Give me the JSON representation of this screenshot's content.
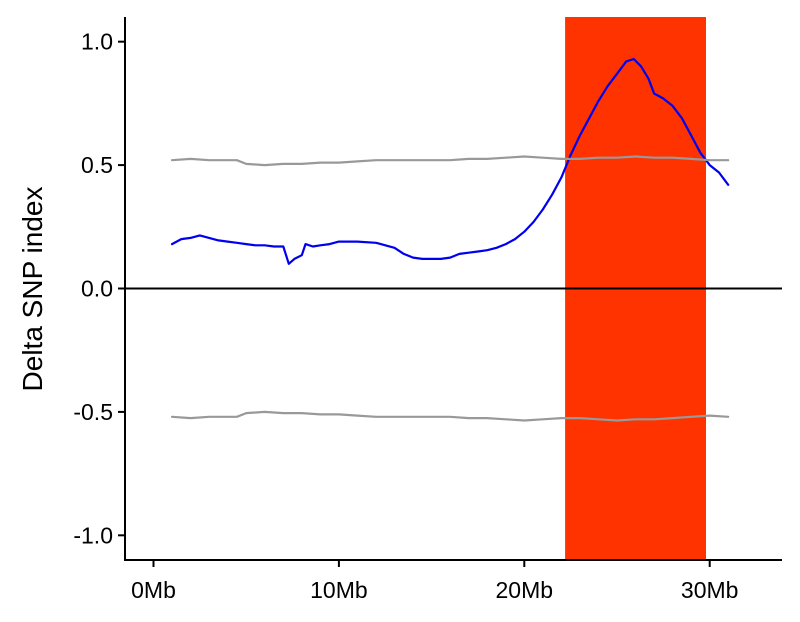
{
  "chart_data": {
    "type": "line",
    "title": "",
    "xlabel": "",
    "ylabel": "Delta SNP index",
    "xlim": [
      -1.5,
      34
    ],
    "ylim": [
      -1.1,
      1.1
    ],
    "x_ticks": [
      {
        "value": 0,
        "label": "0Mb"
      },
      {
        "value": 10,
        "label": "10Mb"
      },
      {
        "value": 20,
        "label": "20Mb"
      },
      {
        "value": 30,
        "label": "30Mb"
      }
    ],
    "y_ticks": [
      {
        "value": 1.0,
        "label": "1.0"
      },
      {
        "value": 0.5,
        "label": "0.5"
      },
      {
        "value": 0.0,
        "label": "0.0"
      },
      {
        "value": -0.5,
        "label": "-0.5"
      },
      {
        "value": -1.0,
        "label": "-1.0"
      }
    ],
    "grid": false,
    "zero_line": 0,
    "highlight_region": {
      "x_start": 22.2,
      "x_end": 29.8,
      "color": "#FF3300"
    },
    "series": [
      {
        "color": "#0000EE",
        "points": [
          [
            1.0,
            0.18
          ],
          [
            1.5,
            0.2
          ],
          [
            2.0,
            0.205
          ],
          [
            2.5,
            0.215
          ],
          [
            3.0,
            0.205
          ],
          [
            3.5,
            0.195
          ],
          [
            4.0,
            0.19
          ],
          [
            4.5,
            0.185
          ],
          [
            5.0,
            0.18
          ],
          [
            5.5,
            0.175
          ],
          [
            6.0,
            0.175
          ],
          [
            6.5,
            0.17
          ],
          [
            7.0,
            0.17
          ],
          [
            7.3,
            0.1
          ],
          [
            7.6,
            0.12
          ],
          [
            8.0,
            0.135
          ],
          [
            8.2,
            0.18
          ],
          [
            8.6,
            0.17
          ],
          [
            9.0,
            0.175
          ],
          [
            9.5,
            0.18
          ],
          [
            10.0,
            0.19
          ],
          [
            10.5,
            0.19
          ],
          [
            11.0,
            0.19
          ],
          [
            12.0,
            0.185
          ],
          [
            12.5,
            0.175
          ],
          [
            13.0,
            0.165
          ],
          [
            13.5,
            0.14
          ],
          [
            14.0,
            0.125
          ],
          [
            14.5,
            0.12
          ],
          [
            15.0,
            0.12
          ],
          [
            15.5,
            0.12
          ],
          [
            16.0,
            0.125
          ],
          [
            16.5,
            0.14
          ],
          [
            17.0,
            0.145
          ],
          [
            17.5,
            0.15
          ],
          [
            18.0,
            0.155
          ],
          [
            18.5,
            0.165
          ],
          [
            19.0,
            0.18
          ],
          [
            19.5,
            0.2
          ],
          [
            20.0,
            0.23
          ],
          [
            20.5,
            0.27
          ],
          [
            21.0,
            0.32
          ],
          [
            21.5,
            0.38
          ],
          [
            22.0,
            0.45
          ],
          [
            22.5,
            0.54
          ],
          [
            23.0,
            0.62
          ],
          [
            23.5,
            0.69
          ],
          [
            24.0,
            0.76
          ],
          [
            24.5,
            0.82
          ],
          [
            25.0,
            0.87
          ],
          [
            25.5,
            0.92
          ],
          [
            25.9,
            0.93
          ],
          [
            26.3,
            0.9
          ],
          [
            26.7,
            0.85
          ],
          [
            27.0,
            0.79
          ],
          [
            27.5,
            0.77
          ],
          [
            28.0,
            0.74
          ],
          [
            28.5,
            0.69
          ],
          [
            29.0,
            0.62
          ],
          [
            29.5,
            0.55
          ],
          [
            30.0,
            0.5
          ],
          [
            30.5,
            0.47
          ],
          [
            31.0,
            0.42
          ]
        ]
      },
      {
        "color": "#999999",
        "points": [
          [
            1.0,
            0.52
          ],
          [
            2.0,
            0.525
          ],
          [
            3.0,
            0.52
          ],
          [
            4.0,
            0.52
          ],
          [
            4.5,
            0.52
          ],
          [
            5.0,
            0.505
          ],
          [
            6.0,
            0.5
          ],
          [
            7.0,
            0.505
          ],
          [
            8.0,
            0.505
          ],
          [
            9.0,
            0.51
          ],
          [
            10.0,
            0.51
          ],
          [
            11.0,
            0.515
          ],
          [
            12.0,
            0.52
          ],
          [
            13.0,
            0.52
          ],
          [
            14.0,
            0.52
          ],
          [
            15.0,
            0.52
          ],
          [
            16.0,
            0.52
          ],
          [
            17.0,
            0.525
          ],
          [
            18.0,
            0.525
          ],
          [
            19.0,
            0.53
          ],
          [
            20.0,
            0.535
          ],
          [
            21.0,
            0.53
          ],
          [
            22.0,
            0.525
          ],
          [
            23.0,
            0.525
          ],
          [
            24.0,
            0.53
          ],
          [
            25.0,
            0.53
          ],
          [
            26.0,
            0.535
          ],
          [
            27.0,
            0.53
          ],
          [
            28.0,
            0.53
          ],
          [
            29.0,
            0.525
          ],
          [
            30.0,
            0.52
          ],
          [
            31.0,
            0.52
          ]
        ]
      },
      {
        "color": "#999999",
        "points": [
          [
            1.0,
            -0.52
          ],
          [
            2.0,
            -0.525
          ],
          [
            3.0,
            -0.52
          ],
          [
            4.0,
            -0.52
          ],
          [
            4.5,
            -0.52
          ],
          [
            5.0,
            -0.505
          ],
          [
            6.0,
            -0.5
          ],
          [
            7.0,
            -0.505
          ],
          [
            8.0,
            -0.505
          ],
          [
            9.0,
            -0.51
          ],
          [
            10.0,
            -0.51
          ],
          [
            11.0,
            -0.515
          ],
          [
            12.0,
            -0.52
          ],
          [
            13.0,
            -0.52
          ],
          [
            14.0,
            -0.52
          ],
          [
            15.0,
            -0.52
          ],
          [
            16.0,
            -0.52
          ],
          [
            17.0,
            -0.525
          ],
          [
            18.0,
            -0.525
          ],
          [
            19.0,
            -0.53
          ],
          [
            20.0,
            -0.535
          ],
          [
            21.0,
            -0.53
          ],
          [
            22.0,
            -0.525
          ],
          [
            23.0,
            -0.525
          ],
          [
            24.0,
            -0.53
          ],
          [
            25.0,
            -0.535
          ],
          [
            26.0,
            -0.53
          ],
          [
            27.0,
            -0.53
          ],
          [
            28.0,
            -0.525
          ],
          [
            29.0,
            -0.52
          ],
          [
            30.0,
            -0.515
          ],
          [
            31.0,
            -0.52
          ]
        ]
      }
    ]
  }
}
